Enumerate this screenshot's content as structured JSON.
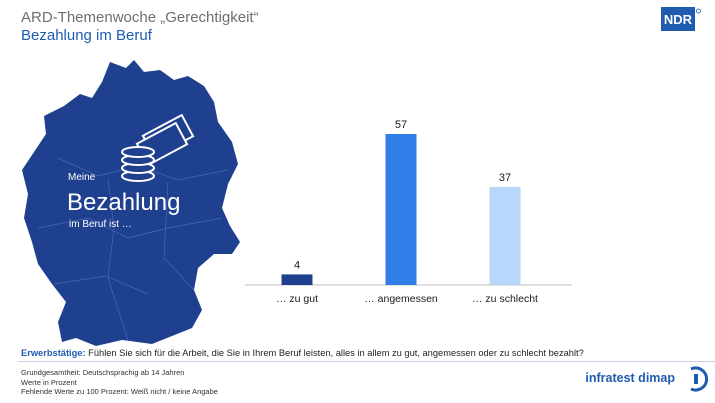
{
  "header": {
    "title": "ARD-Themenwoche „Gerechtigkeit“",
    "subtitle": "Bezahlung im Beruf",
    "logo_text": "NDR"
  },
  "map_overlay": {
    "line1": "Meine",
    "line2": "Bezahlung",
    "line3": "im Beruf ist …"
  },
  "colors": {
    "dark_blue": "#1f3f8f",
    "mid_blue": "#2f7de6",
    "light_blue": "#b9d6fb",
    "accent": "#1f5cb0"
  },
  "chart_data": {
    "type": "bar",
    "categories": [
      "… zu gut",
      "… angemessen",
      "… zu schlecht"
    ],
    "values": [
      4,
      57,
      37
    ],
    "bar_colors": [
      "#1f3f8f",
      "#2f7de6",
      "#b9d6fb"
    ],
    "ylim": [
      0,
      60
    ],
    "grid": false,
    "legend": "none",
    "data_labels": true
  },
  "question": {
    "label": "Erwerbstätige:",
    "text": " Fühlen Sie sich für die Arbeit, die Sie in Ihrem Beruf leisten, alles in allem zu gut, angemessen oder zu schlecht bezahlt?"
  },
  "footnotes": {
    "line1": "Grundgesamtheit: Deutschsprachig ab 14 Jahren",
    "line2": "Werte in Prozent",
    "line3": "Fehlende Werte zu 100 Prozent: Weiß nicht / keine Angabe"
  },
  "branding": {
    "name": "infratest dimap"
  }
}
